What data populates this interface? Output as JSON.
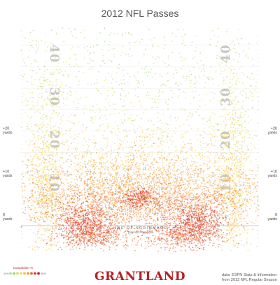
{
  "chart_data": {
    "type": "scatter",
    "title": "2012 NFL Passes",
    "xlabel": "",
    "ylabel": "",
    "ylim": [
      -8,
      44
    ],
    "xlim": [
      -26.7,
      26.7
    ],
    "y_ticks": [
      "+20 yards",
      "+10 yards",
      "0 yards"
    ],
    "yard_numbers": [
      "40",
      "30",
      "20",
      "10",
      "40",
      "30",
      "20",
      "10"
    ],
    "line_of_scrimmage": "LINE OF SCRIMMAGE",
    "line_of_scrimmage_sub": "Trimmed Downfield",
    "legend": {
      "title": "Completion %",
      "min_label": "10%",
      "max_label": "90%",
      "colors": [
        "#b9df9a",
        "#9fd07c",
        "#d2de6a",
        "#f2dd55",
        "#f7c254",
        "#f39b42",
        "#ea6c31",
        "#dc3c2b",
        "#c21f2b"
      ]
    },
    "clusters": [
      {
        "x": -21,
        "y": 4,
        "sx": 2.0,
        "sy": 8.0,
        "n": 520,
        "completion": 0.45
      },
      {
        "x": 21,
        "y": 4,
        "sx": 2.0,
        "sy": 8.0,
        "n": 520,
        "completion": 0.45
      },
      {
        "x": -21,
        "y": 22,
        "sx": 2.4,
        "sy": 10.0,
        "n": 360,
        "completion": 0.3
      },
      {
        "x": 21,
        "y": 22,
        "sx": 2.4,
        "sy": 10.0,
        "n": 360,
        "completion": 0.3
      },
      {
        "x": 0,
        "y": 6.5,
        "sx": 16.0,
        "sy": 3.8,
        "n": 2200,
        "completion": 0.63
      },
      {
        "x": 0,
        "y": 2.5,
        "sx": 12.0,
        "sy": 2.4,
        "n": 1100,
        "completion": 0.72
      },
      {
        "x": 0,
        "y": 4.5,
        "sx": 1.8,
        "sy": 1.1,
        "n": 220,
        "completion": 0.86
      },
      {
        "x": -12.5,
        "y": -1.5,
        "sx": 3.2,
        "sy": 2.4,
        "n": 700,
        "completion": 0.86
      },
      {
        "x": 12.5,
        "y": -1.5,
        "sx": 3.2,
        "sy": 2.4,
        "n": 700,
        "completion": 0.86
      },
      {
        "x": -9.0,
        "y": -4.5,
        "sx": 4.5,
        "sy": 1.6,
        "n": 450,
        "completion": 0.76
      },
      {
        "x": 9.0,
        "y": -4.5,
        "sx": 4.5,
        "sy": 1.6,
        "n": 450,
        "completion": 0.76
      },
      {
        "x": 0,
        "y": 13,
        "sx": 14.0,
        "sy": 4.5,
        "n": 800,
        "completion": 0.5
      },
      {
        "x": 0,
        "y": 22,
        "sx": 16.0,
        "sy": 9.0,
        "n": 650,
        "completion": 0.28
      },
      {
        "x": 0,
        "y": 36,
        "sx": 17.0,
        "sy": 7.0,
        "n": 420,
        "completion": 0.14
      }
    ]
  },
  "brand": "GRANTLAND",
  "source": {
    "line1": "data: ESPN Stats & Information",
    "line2": "from 2012 NFL Regular Season"
  }
}
